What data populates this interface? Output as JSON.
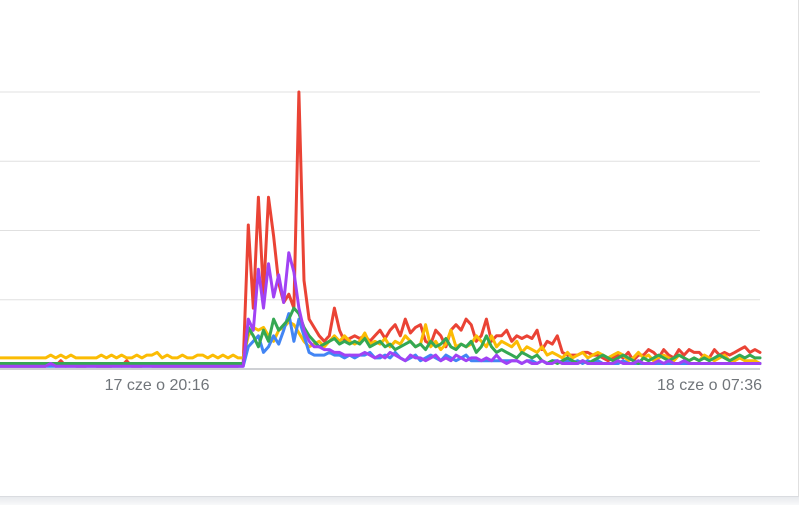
{
  "chart_data": {
    "type": "line",
    "title": "",
    "xlabel": "",
    "ylabel": "",
    "ylim": [
      0,
      100
    ],
    "y_gridlines": [
      0,
      25,
      50,
      75,
      100
    ],
    "grid": true,
    "legend": "none",
    "x_tick_labels": [
      {
        "index": 31,
        "label": "17 cze o 20:16"
      },
      {
        "index": 152,
        "label": "18 cze o 07:36"
      }
    ],
    "series": [
      {
        "color": "#ea4335",
        "values": [
          1,
          1,
          1,
          1,
          1,
          1,
          1,
          1,
          1,
          1,
          2,
          1,
          3,
          1,
          2,
          1,
          1,
          1,
          2,
          1,
          1,
          1,
          1,
          2,
          1,
          3,
          1,
          1,
          1,
          2,
          1,
          1,
          1,
          1,
          1,
          1,
          1,
          1,
          1,
          1,
          1,
          1,
          1,
          1,
          1,
          1,
          1,
          1,
          2,
          52,
          22,
          62,
          27,
          62,
          48,
          31,
          24,
          27,
          22,
          100,
          32,
          18,
          15,
          12,
          10,
          12,
          22,
          14,
          10,
          11,
          12,
          11,
          12,
          10,
          12,
          14,
          11,
          14,
          16,
          12,
          18,
          13,
          15,
          16,
          10,
          9,
          14,
          12,
          8,
          14,
          16,
          14,
          18,
          16,
          10,
          12,
          18,
          10,
          12,
          12,
          14,
          10,
          12,
          11,
          12,
          11,
          14,
          7,
          10,
          9,
          12,
          6,
          5,
          5,
          5,
          6,
          6,
          5,
          5,
          4,
          3,
          4,
          5,
          4,
          6,
          3,
          5,
          5,
          7,
          6,
          4,
          7,
          5,
          4,
          7,
          5,
          7,
          6,
          6,
          4,
          4,
          7,
          5,
          6,
          5,
          6,
          7,
          8,
          6,
          7,
          6
        ]
      },
      {
        "color": "#fbbc04",
        "values": [
          4,
          4,
          4,
          4,
          4,
          4,
          4,
          4,
          4,
          4,
          5,
          4,
          5,
          4,
          5,
          4,
          4,
          4,
          4,
          4,
          5,
          4,
          5,
          4,
          5,
          4,
          4,
          5,
          4,
          5,
          5,
          6,
          4,
          5,
          4,
          4,
          5,
          4,
          4,
          5,
          5,
          4,
          5,
          4,
          5,
          4,
          5,
          4,
          4,
          12,
          15,
          14,
          15,
          12,
          10,
          14,
          15,
          17,
          16,
          13,
          10,
          8,
          9,
          10,
          8,
          10,
          12,
          10,
          12,
          10,
          9,
          10,
          13,
          9,
          10,
          9,
          11,
          8,
          10,
          9,
          12,
          10,
          8,
          9,
          16,
          8,
          10,
          7,
          9,
          14,
          8,
          9,
          8,
          9,
          12,
          10,
          8,
          12,
          8,
          10,
          9,
          8,
          10,
          6,
          8,
          7,
          6,
          8,
          5,
          6,
          5,
          4,
          6,
          4,
          5,
          6,
          4,
          5,
          6,
          5,
          4,
          5,
          6,
          5,
          3,
          4,
          6,
          4,
          5,
          3,
          4,
          5,
          4,
          3,
          5,
          4,
          3,
          4,
          3,
          5,
          4,
          3,
          4,
          5,
          3,
          3,
          4,
          3,
          3,
          3,
          2
        ]
      },
      {
        "color": "#4285f4",
        "values": [
          1,
          1,
          1,
          1,
          1,
          1,
          1,
          1,
          1,
          1,
          1,
          1,
          1,
          1,
          1,
          1,
          1,
          1,
          1,
          1,
          1,
          1,
          1,
          1,
          1,
          1,
          1,
          1,
          1,
          1,
          1,
          1,
          1,
          1,
          1,
          1,
          1,
          1,
          1,
          1,
          1,
          1,
          1,
          1,
          1,
          1,
          1,
          1,
          1,
          8,
          10,
          12,
          6,
          8,
          12,
          9,
          14,
          20,
          10,
          18,
          12,
          6,
          5,
          5,
          5,
          6,
          5,
          5,
          4,
          5,
          4,
          5,
          5,
          6,
          4,
          4,
          5,
          4,
          6,
          4,
          3,
          4,
          5,
          3,
          4,
          5,
          4,
          3,
          5,
          4,
          3,
          4,
          5,
          3,
          3,
          3,
          3,
          3,
          3,
          3,
          3,
          3,
          3,
          2,
          3,
          3,
          2,
          3,
          2,
          3,
          3,
          2,
          3,
          2,
          3,
          2,
          3,
          2,
          3,
          2,
          2,
          2,
          2,
          3,
          2,
          2,
          2,
          2,
          2,
          2,
          2,
          2,
          2,
          2,
          2,
          2,
          2,
          2,
          2,
          2,
          2,
          2,
          2,
          2,
          2,
          2,
          2,
          2,
          2,
          2,
          2
        ]
      },
      {
        "color": "#34a853",
        "values": [
          2,
          2,
          2,
          2,
          2,
          2,
          2,
          2,
          2,
          2,
          2,
          2,
          2,
          2,
          2,
          2,
          2,
          2,
          2,
          2,
          2,
          2,
          2,
          2,
          2,
          2,
          2,
          2,
          2,
          2,
          2,
          2,
          2,
          2,
          2,
          2,
          2,
          2,
          2,
          2,
          2,
          2,
          2,
          2,
          2,
          2,
          2,
          2,
          2,
          15,
          12,
          8,
          14,
          10,
          18,
          14,
          16,
          18,
          22,
          20,
          15,
          12,
          10,
          8,
          9,
          10,
          11,
          9,
          10,
          9,
          10,
          9,
          11,
          8,
          9,
          10,
          8,
          9,
          7,
          8,
          9,
          10,
          8,
          9,
          7,
          10,
          8,
          9,
          11,
          8,
          7,
          9,
          8,
          10,
          6,
          8,
          12,
          8,
          6,
          7,
          6,
          5,
          4,
          6,
          5,
          4,
          5,
          3,
          2,
          3,
          2,
          3,
          4,
          3,
          2,
          3,
          2,
          3,
          4,
          5,
          4,
          3,
          4,
          5,
          4,
          3,
          2,
          4,
          3,
          4,
          5,
          4,
          3,
          4,
          5,
          4,
          3,
          4,
          3,
          4,
          3,
          4,
          5,
          4,
          3,
          4,
          5,
          4,
          5,
          4,
          4
        ]
      },
      {
        "color": "#a142f4",
        "values": [
          1,
          1,
          1,
          1,
          1,
          1,
          1,
          1,
          1,
          1,
          2,
          1,
          1,
          1,
          1,
          1,
          1,
          1,
          1,
          1,
          1,
          1,
          1,
          1,
          1,
          1,
          1,
          1,
          1,
          1,
          1,
          1,
          1,
          1,
          1,
          1,
          1,
          1,
          1,
          1,
          1,
          1,
          1,
          1,
          1,
          1,
          1,
          1,
          1,
          18,
          14,
          36,
          22,
          38,
          26,
          34,
          24,
          42,
          35,
          22,
          14,
          10,
          8,
          8,
          7,
          7,
          6,
          6,
          5,
          5,
          5,
          5,
          6,
          5,
          4,
          5,
          4,
          6,
          5,
          4,
          3,
          5,
          4,
          4,
          3,
          4,
          5,
          3,
          4,
          3,
          5,
          4,
          3,
          4,
          4,
          3,
          4,
          3,
          5,
          3,
          2,
          3,
          3,
          2,
          3,
          2,
          2,
          3,
          2,
          2,
          3,
          2,
          2,
          2,
          2,
          3,
          2,
          2,
          2,
          2,
          2,
          2,
          3,
          2,
          2,
          2,
          3,
          2,
          2,
          2,
          3,
          2,
          3,
          2,
          2,
          3,
          2,
          2,
          2,
          2,
          2,
          2,
          2,
          2,
          2,
          2,
          2,
          2,
          2,
          2,
          2
        ]
      }
    ]
  }
}
